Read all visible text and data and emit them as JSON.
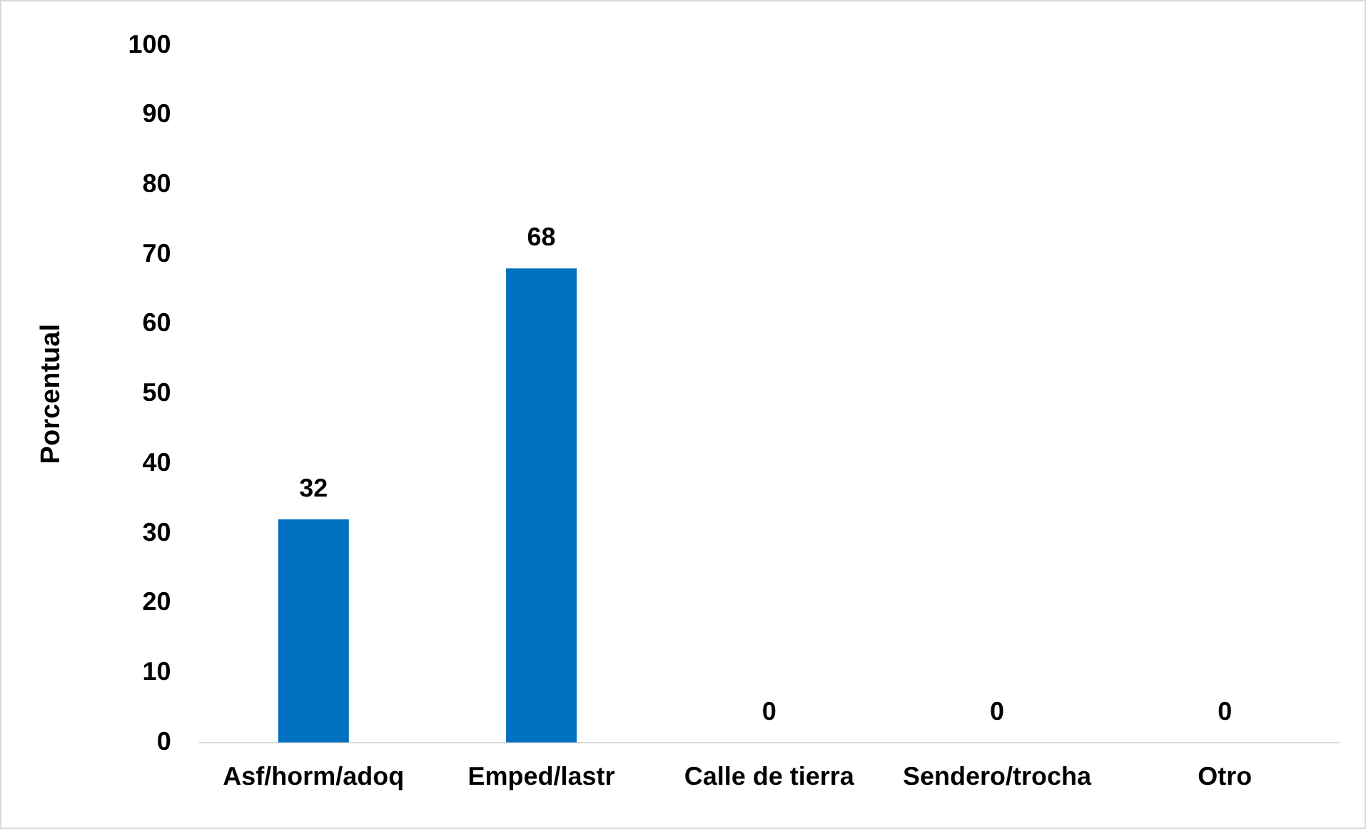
{
  "chart_data": {
    "type": "bar",
    "ylabel": "Porcentual",
    "categories": [
      "Asf/horm/adoq",
      "Emped/lastr",
      "Calle de tierra",
      "Sendero/trocha",
      "Otro"
    ],
    "values": [
      32,
      68,
      0,
      0,
      0
    ],
    "color": "#0070c0",
    "ylim": [
      0,
      100
    ],
    "yticks": [
      0,
      10,
      20,
      30,
      40,
      50,
      60,
      70,
      80,
      90,
      100
    ],
    "grid": false,
    "legend": false,
    "data_labels": true
  }
}
